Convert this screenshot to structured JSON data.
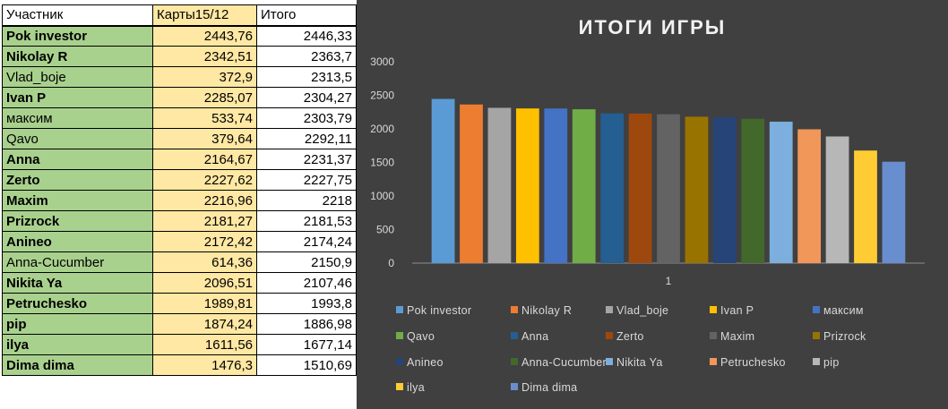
{
  "table": {
    "headers": [
      "Участник",
      "Карты15/12",
      "Итого"
    ],
    "rows": [
      {
        "name": "Pok investor",
        "cards": "2443,76",
        "total": "2446,33",
        "bold": true
      },
      {
        "name": "Nikolay R",
        "cards": "2342,51",
        "total": "2363,7",
        "bold": true
      },
      {
        "name": "Vlad_boje",
        "cards": "372,9",
        "total": "2313,5",
        "bold": false
      },
      {
        "name": "Ivan P",
        "cards": "2285,07",
        "total": "2304,27",
        "bold": true
      },
      {
        "name": "максим",
        "cards": "533,74",
        "total": "2303,79",
        "bold": false
      },
      {
        "name": "Qavo",
        "cards": "379,64",
        "total": "2292,11",
        "bold": false
      },
      {
        "name": "Anna",
        "cards": "2164,67",
        "total": "2231,37",
        "bold": true
      },
      {
        "name": "Zerto",
        "cards": "2227,62",
        "total": "2227,75",
        "bold": true
      },
      {
        "name": "Maxim",
        "cards": "2216,96",
        "total": "2218",
        "bold": true
      },
      {
        "name": "Prizrock",
        "cards": "2181,27",
        "total": "2181,53",
        "bold": true
      },
      {
        "name": "Anineo",
        "cards": "2172,42",
        "total": "2174,24",
        "bold": true
      },
      {
        "name": "Anna-Cucumber",
        "cards": "614,36",
        "total": "2150,9",
        "bold": false
      },
      {
        "name": "Nikita Ya",
        "cards": "2096,51",
        "total": "2107,46",
        "bold": true
      },
      {
        "name": "Petruchesko",
        "cards": "1989,81",
        "total": "1993,8",
        "bold": true
      },
      {
        "name": "pip",
        "cards": "1874,24",
        "total": "1886,98",
        "bold": true
      },
      {
        "name": "ilya",
        "cards": "1611,56",
        "total": "1677,14",
        "bold": true
      },
      {
        "name": "Dima dima",
        "cards": "1476,3",
        "total": "1510,69",
        "bold": true
      }
    ]
  },
  "chart_data": {
    "type": "bar",
    "title": "ИТОГИ ИГРЫ",
    "categories": [
      "1"
    ],
    "ylim": [
      0,
      3000
    ],
    "yticks": [
      "0",
      "500",
      "1000",
      "1500",
      "2000",
      "2500",
      "3000"
    ],
    "grid": false,
    "legend_position": "bottom",
    "background": "#404040",
    "series": [
      {
        "name": "Pok investor",
        "values": [
          2446.33
        ],
        "color": "#5b9bd5"
      },
      {
        "name": "Nikolay R",
        "values": [
          2363.7
        ],
        "color": "#ed7d31"
      },
      {
        "name": "Vlad_boje",
        "values": [
          2313.5
        ],
        "color": "#a5a5a5"
      },
      {
        "name": "Ivan P",
        "values": [
          2304.27
        ],
        "color": "#ffc000"
      },
      {
        "name": "максим",
        "values": [
          2303.79
        ],
        "color": "#4472c4"
      },
      {
        "name": "Qavo",
        "values": [
          2292.11
        ],
        "color": "#70ad47"
      },
      {
        "name": "Anna",
        "values": [
          2231.37
        ],
        "color": "#255e91"
      },
      {
        "name": "Zerto",
        "values": [
          2227.75
        ],
        "color": "#9e480e"
      },
      {
        "name": "Maxim",
        "values": [
          2218
        ],
        "color": "#636363"
      },
      {
        "name": "Prizrock",
        "values": [
          2181.53
        ],
        "color": "#997300"
      },
      {
        "name": "Anineo",
        "values": [
          2174.24
        ],
        "color": "#264478"
      },
      {
        "name": "Anna-Cucumber",
        "values": [
          2150.9
        ],
        "color": "#43682b"
      },
      {
        "name": "Nikita Ya",
        "values": [
          2107.46
        ],
        "color": "#7cafdd"
      },
      {
        "name": "Petruchesko",
        "values": [
          1993.8
        ],
        "color": "#f1975a"
      },
      {
        "name": "pip",
        "values": [
          1886.98
        ],
        "color": "#b7b7b7"
      },
      {
        "name": "ilya",
        "values": [
          1677.14
        ],
        "color": "#ffcd33"
      },
      {
        "name": "Dima dima",
        "values": [
          1510.69
        ],
        "color": "#698ed0"
      }
    ]
  }
}
